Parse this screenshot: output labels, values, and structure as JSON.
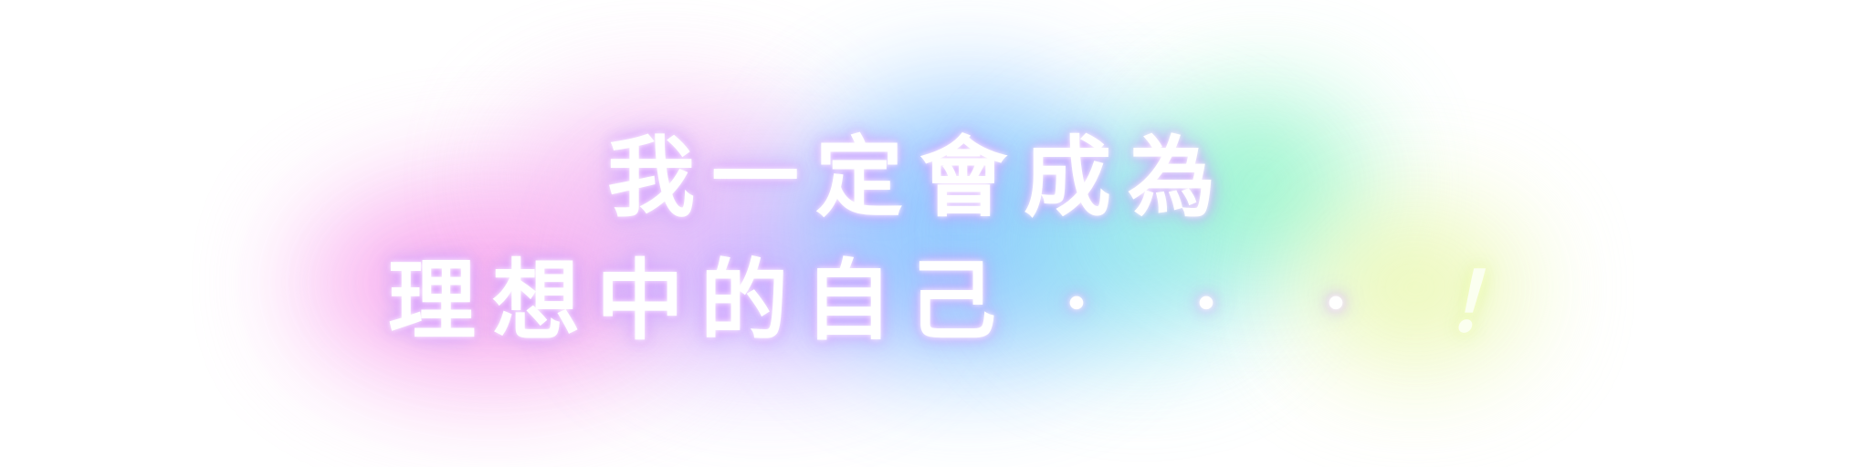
{
  "banner": {
    "line1": "我一定會成為",
    "line2": "理想中的自己",
    "ellipsis": "・・・",
    "exclaim": "！"
  },
  "colors": {
    "text": "#ffffff",
    "glow_pink": "#f8a6ee",
    "glow_violet": "#c9a8ff",
    "glow_blue": "#8cc6ff",
    "glow_green": "#8ef5c6",
    "glow_lime": "#e8f7a8"
  }
}
